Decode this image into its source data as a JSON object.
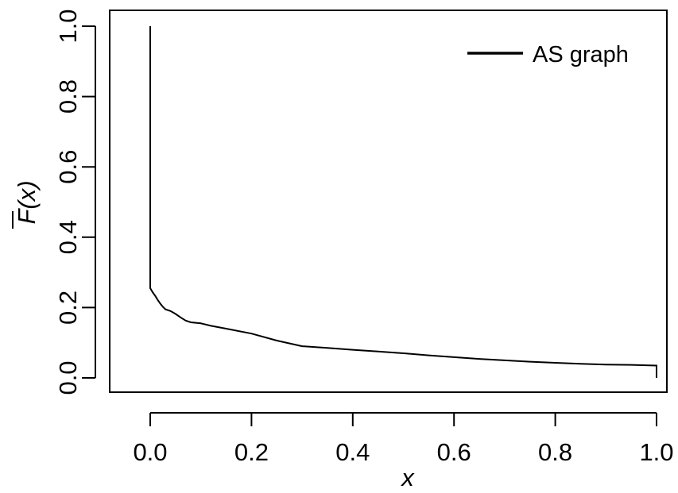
{
  "chart_data": {
    "type": "line",
    "xlabel": "x",
    "ylabel": "F(x)",
    "xlim": [
      0.0,
      1.0
    ],
    "ylim": [
      0.0,
      1.0
    ],
    "grid": false,
    "legend_position": "top-right",
    "x_ticks": [
      "0.0",
      "0.2",
      "0.4",
      "0.6",
      "0.8",
      "1.0"
    ],
    "y_ticks": [
      "0.0",
      "0.2",
      "0.4",
      "0.6",
      "0.8",
      "1.0"
    ],
    "series": [
      {
        "name": "AS graph",
        "color": "#000000",
        "x": [
          0.0,
          0.0,
          0.0,
          0.005,
          0.01,
          0.015,
          0.02,
          0.025,
          0.03,
          0.04,
          0.05,
          0.06,
          0.07,
          0.08,
          0.1,
          0.12,
          0.15,
          0.2,
          0.25,
          0.3,
          0.35,
          0.4,
          0.45,
          0.5,
          0.55,
          0.6,
          0.65,
          0.7,
          0.75,
          0.8,
          0.85,
          0.9,
          0.95,
          1.0,
          1.0
        ],
        "y": [
          1.0,
          0.255,
          0.255,
          0.243,
          0.233,
          0.221,
          0.211,
          0.202,
          0.195,
          0.19,
          0.182,
          0.172,
          0.163,
          0.158,
          0.155,
          0.148,
          0.14,
          0.126,
          0.106,
          0.09,
          0.085,
          0.08,
          0.075,
          0.07,
          0.064,
          0.059,
          0.054,
          0.05,
          0.046,
          0.043,
          0.04,
          0.038,
          0.037,
          0.035,
          0.0
        ]
      }
    ]
  }
}
